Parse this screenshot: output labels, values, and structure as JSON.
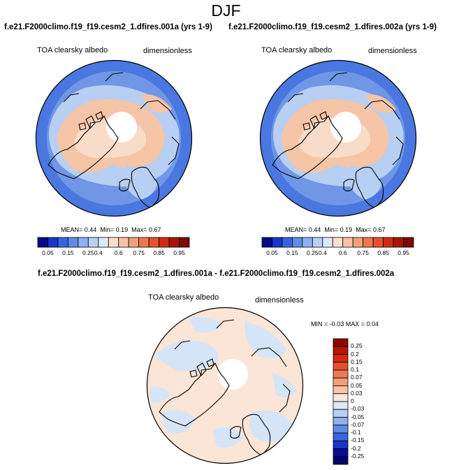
{
  "page": {
    "season_title": "DJF"
  },
  "panels": {
    "left": {
      "case_title": "f.e21.F2000climo.f19_f19.cesm2_1.dfires.001a (yrs 1-9)",
      "variable": "TOA clearsky albedo",
      "units": "dimensionless",
      "mean_label": "MEAN=",
      "mean_value": "0.44",
      "min_label": "Min=",
      "min_value": "0.19",
      "max_label": "Max=",
      "max_value": "0.67"
    },
    "right": {
      "case_title": "f.e21.F2000climo.f19_f19.cesm2_1.dfires.002a (yrs 1-9)",
      "variable": "TOA clearsky albedo",
      "units": "dimensionless",
      "mean_label": "MEAN=",
      "mean_value": "0.44",
      "min_label": "Min=",
      "min_value": "0.19",
      "max_label": "Max=",
      "max_value": "0.67"
    },
    "diff": {
      "case_title": "f.e21.F2000climo.f19_f19.cesm2_1.dfires.001a - f.e21.F2000climo.f19_f19.cesm2_1.dfires.002a",
      "variable": "TOA clearsky albedo",
      "units": "dimensionless",
      "range_text": "MIN = -0.03 MAX =  0.04"
    }
  },
  "colorbar_main": {
    "labels": [
      "0.05",
      "0.15",
      "0.25",
      "0.4",
      "0.6",
      "0.75",
      "0.85",
      "0.95"
    ],
    "colors": [
      "#08088a",
      "#1b34c8",
      "#3a63e0",
      "#5e8ae8",
      "#8db0ee",
      "#b8d0f3",
      "#dfe8f7",
      "#fbe0d0",
      "#f6c2a8",
      "#f2a07a",
      "#ec7a4e",
      "#e4532c",
      "#d02c12",
      "#a81505",
      "#7a0a02"
    ]
  },
  "colorbar_diff": {
    "labels": [
      "0.25",
      "0.2",
      "0.15",
      "0.1",
      "0.07",
      "0.05",
      "0.03",
      "0",
      "-0.03",
      "-0.05",
      "-0.07",
      "-0.1",
      "-0.15",
      "-0.2",
      "-0.25"
    ],
    "colors": [
      "#8a0a02",
      "#b81505",
      "#d42a0f",
      "#e4502a",
      "#ee7a52",
      "#f3a07a",
      "#f7c5a8",
      "#fbe8da",
      "#dde8f8",
      "#b8cff3",
      "#8db0ee",
      "#5e8ae8",
      "#3a63e0",
      "#1b34c8",
      "#0a0a9a",
      "#050565"
    ]
  },
  "map_colors": {
    "ocean_outer": "#4a78e0",
    "ocean_mid": "#6f97e6",
    "light_blue": "#b7cff2",
    "peach": "#f6c4a6",
    "light_peach": "#f9dcc8",
    "center": "#ffffff",
    "diff_base": "#fbe5d6",
    "diff_blue": "#d6e4f7"
  }
}
